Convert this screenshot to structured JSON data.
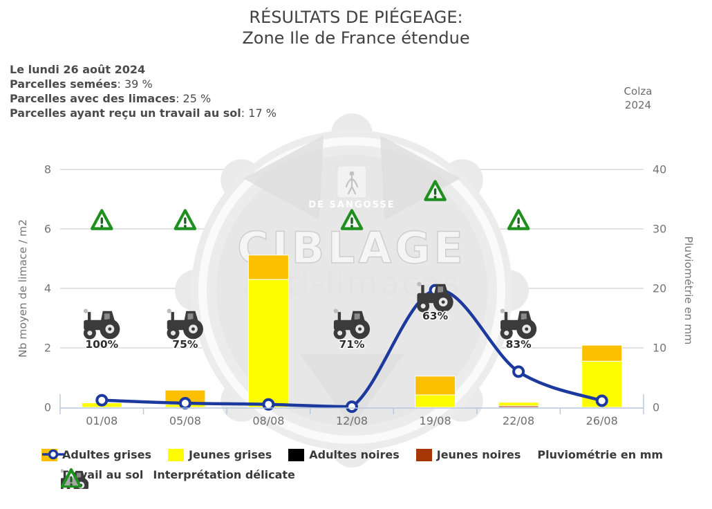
{
  "title": {
    "line1": "RÉSULTATS DE PIÉGEAGE:",
    "line2": "Zone Ile de France étendue"
  },
  "info": {
    "date_line": "Le lundi 26 août 2024",
    "separator": ": ",
    "stats": [
      {
        "label": "Parcelles semées",
        "value": "39 %"
      },
      {
        "label": "Parcelles avec des limaces",
        "value": "25 %"
      },
      {
        "label": "Parcelles ayant reçu un travail au sol",
        "value": "17 %"
      }
    ]
  },
  "crop_label": {
    "line1": "Colza",
    "line2": "2024"
  },
  "watermark": {
    "brand": "DE SANGOSSE",
    "line1": "CIBLAGE",
    "line2": "anti-limaces"
  },
  "chart_data": {
    "type": "bar",
    "subtype": "stacked-bars-with-line-overlay",
    "categories": [
      "01/08",
      "05/08",
      "08/08",
      "12/08",
      "19/08",
      "22/08",
      "26/08"
    ],
    "series": [
      {
        "name": "Adultes grises",
        "color": "#fdc000",
        "values": [
          0,
          0.48,
          0.82,
          0,
          0.63,
          0,
          0.54
        ]
      },
      {
        "name": "Jeunes grises",
        "color": "#fdfd00",
        "values": [
          0.15,
          0.1,
          4.3,
          0,
          0.42,
          0.12,
          1.55
        ]
      },
      {
        "name": "Adultes noires",
        "color": "#000000",
        "values": [
          0,
          0,
          0,
          0,
          0,
          0,
          0
        ]
      },
      {
        "name": "Jeunes noires",
        "color": "#a63603",
        "values": [
          0,
          0,
          0,
          0,
          0,
          0.05,
          0
        ]
      }
    ],
    "stack_order": [
      "Jeunes noires",
      "Adultes noires",
      "Jeunes grises",
      "Adultes grises"
    ],
    "line_series": {
      "name": "Pluviométrie en mm",
      "color": "#1c3a9e",
      "values": [
        1.2,
        0.7,
        0.5,
        0.1,
        19.7,
        6,
        1.1
      ]
    },
    "left_axis": {
      "label": "Nb moyen de limace / m2",
      "ticks": [
        0,
        2,
        4,
        6,
        8
      ],
      "range": [
        0,
        8
      ]
    },
    "right_axis": {
      "label": "Pluviométrie en mm",
      "ticks": [
        0,
        10,
        20,
        30,
        40
      ],
      "range": [
        0,
        40
      ]
    },
    "grid": true,
    "tillage_markers": {
      "name": "Travail au sol",
      "entries": [
        {
          "category": "01/08",
          "percent": "100%",
          "raised": false
        },
        {
          "category": "05/08",
          "percent": "75%",
          "raised": false
        },
        {
          "category": "12/08",
          "percent": "71%",
          "raised": false
        },
        {
          "category": "19/08",
          "percent": "63%",
          "raised": true
        },
        {
          "category": "22/08",
          "percent": "83%",
          "raised": false
        }
      ]
    },
    "warning_markers": {
      "name": "Interprétation délicate",
      "entries": [
        {
          "category": "01/08",
          "raised": false
        },
        {
          "category": "05/08",
          "raised": false
        },
        {
          "category": "12/08",
          "raised": false
        },
        {
          "category": "19/08",
          "raised": true
        },
        {
          "category": "22/08",
          "raised": false
        }
      ]
    }
  },
  "legend": {
    "row1": [
      {
        "type": "box",
        "label": "Adultes grises",
        "color": "#fdc000"
      },
      {
        "type": "box",
        "label": "Jeunes grises",
        "color": "#fdfd00"
      },
      {
        "type": "box",
        "label": "Adultes noires",
        "color": "#000000"
      },
      {
        "type": "box",
        "label": "Jeunes noires",
        "color": "#a63603"
      },
      {
        "type": "line",
        "label": "Pluviométrie en mm",
        "color": "#1c3a9e"
      }
    ],
    "row2": [
      {
        "type": "tractor",
        "label": "Travail au sol"
      },
      {
        "type": "triangle",
        "label": "Interprétation délicate"
      }
    ]
  },
  "colors": {
    "rain_blue": "#1c3a9e",
    "warning_green": "#1f8f1f",
    "warning_green_dark": "#215e21",
    "tractor_gray": "#3b3b3b",
    "grid_gray": "#d8d8d8",
    "axis_blue_gray": "#b7c6dd",
    "tick_text": "#757575",
    "x_label_text": "#6e6e6e"
  }
}
